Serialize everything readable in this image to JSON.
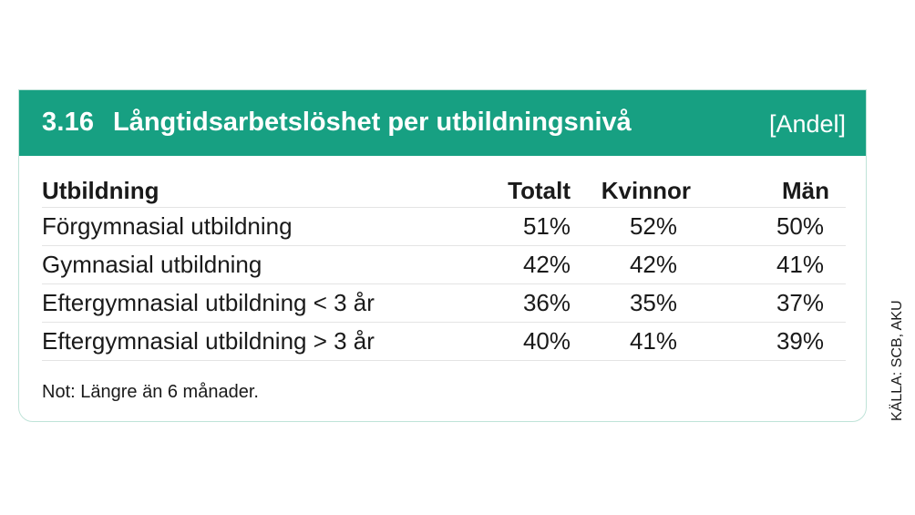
{
  "chart_data": {
    "type": "table",
    "number": "3.16",
    "title": "Långtidsarbetslöshet per utbildningsnivå",
    "unit": "[Andel]",
    "columns": [
      "Utbildning",
      "Totalt",
      "Kvinnor",
      "Män"
    ],
    "rows": [
      {
        "label": "Förgymnasial utbildning",
        "values": [
          "51%",
          "52%",
          "50%"
        ]
      },
      {
        "label": "Gymnasial utbildning",
        "values": [
          "42%",
          "42%",
          "41%"
        ]
      },
      {
        "label": "Eftergymnasial utbildning < 3 år",
        "values": [
          "36%",
          "35%",
          "37%"
        ]
      },
      {
        "label": "Eftergymnasial utbildning > 3 år",
        "values": [
          "40%",
          "41%",
          "39%"
        ]
      }
    ],
    "note": "Not: Längre än 6 månader.",
    "source": "KÄLLA: SCB, AKU",
    "colors": {
      "header": "#17a082",
      "header_text": "#ffffff",
      "border": "#bfe3d8"
    }
  }
}
